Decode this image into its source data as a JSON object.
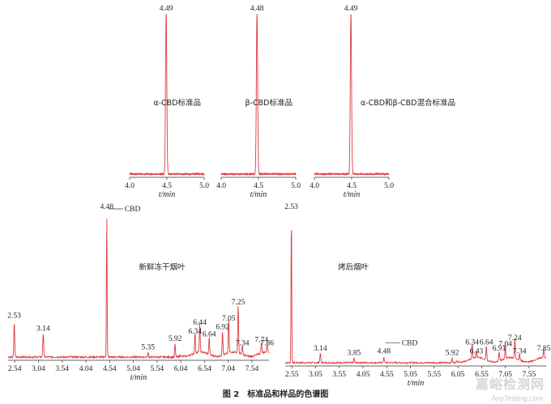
{
  "caption": "图 2　标准品和样品的色谱图",
  "watermark": {
    "text": "嘉峪检测网",
    "subtext": "AnyTesting.com"
  },
  "colors": {
    "trace": "#e0393f",
    "axis": "#333333"
  },
  "chart_data": [
    {
      "type": "line",
      "label": "α-CBD标准品",
      "xlabel": "t/min",
      "xlim": [
        4.0,
        5.0
      ],
      "xticks": [
        "4.0",
        "4.5",
        "5.0"
      ],
      "baseline_noise": 0.004,
      "peaks": [
        {
          "x": 4.49,
          "label": "4.49",
          "height": 1.0,
          "width": 0.012
        }
      ]
    },
    {
      "type": "line",
      "label": "β-CBD标准品",
      "xlabel": "t/min",
      "xlim": [
        4.0,
        5.0
      ],
      "xticks": [
        "4.0",
        "4.5",
        "5.0"
      ],
      "baseline_noise": 0.004,
      "peaks": [
        {
          "x": 4.48,
          "label": "4.48",
          "height": 1.0,
          "width": 0.012
        }
      ]
    },
    {
      "type": "line",
      "label": "α-CBD和β-CBD混合标准品",
      "xlabel": "t/min",
      "xlim": [
        4.0,
        5.0
      ],
      "xticks": [
        "4.0",
        "4.5",
        "5.0"
      ],
      "baseline_noise": 0.004,
      "peaks": [
        {
          "x": 4.49,
          "label": "4.49",
          "height": 1.0,
          "width": 0.012
        }
      ]
    },
    {
      "type": "line",
      "label": "新鲜冻干烟叶",
      "xlabel": "t/min",
      "xlim": [
        2.4,
        7.9
      ],
      "xticks": [
        "2.54",
        "3.04",
        "3.54",
        "4.04",
        "4.54",
        "5.04",
        "5.54",
        "6.04",
        "6.54",
        "7.04",
        "7.54"
      ],
      "baseline_noise": 0.006,
      "annotation": {
        "text": "CBD",
        "x": 4.48
      },
      "peaks": [
        {
          "x": 2.53,
          "label": "2.53",
          "height": 0.25,
          "width": 0.012
        },
        {
          "x": 3.14,
          "label": "3.14",
          "height": 0.16,
          "width": 0.014
        },
        {
          "x": 4.48,
          "label": "4.48",
          "height": 1.0,
          "width": 0.01
        },
        {
          "x": 5.35,
          "label": "5.35",
          "height": 0.03,
          "width": 0.012
        },
        {
          "x": 5.92,
          "label": "5.92",
          "height": 0.09,
          "width": 0.012
        },
        {
          "x": 6.34,
          "label": "6.34",
          "height": 0.14,
          "width": 0.012
        },
        {
          "x": 6.44,
          "label": "6.44",
          "height": 0.2,
          "width": 0.012
        },
        {
          "x": 6.64,
          "label": "6.64",
          "height": 0.12,
          "width": 0.012
        },
        {
          "x": 6.92,
          "label": "6.92",
          "height": 0.17,
          "width": 0.012
        },
        {
          "x": 7.05,
          "label": "7.05",
          "height": 0.23,
          "width": 0.012
        },
        {
          "x": 7.25,
          "label": "7.25",
          "height": 0.34,
          "width": 0.012
        },
        {
          "x": 7.34,
          "label": "7.34",
          "height": 0.06,
          "width": 0.012
        },
        {
          "x": 7.74,
          "label": "7.74",
          "height": 0.08,
          "width": 0.012
        },
        {
          "x": 7.86,
          "label": "7.86",
          "height": 0.06,
          "width": 0.012
        }
      ]
    },
    {
      "type": "line",
      "label": "烤后烟叶",
      "xlabel": "t/min",
      "xlim": [
        2.4,
        7.9
      ],
      "xticks": [
        "2.55",
        "3.05",
        "3.55",
        "4.05",
        "4.55",
        "5.05",
        "5.55",
        "6.05",
        "6.55",
        "7.05",
        "7.55"
      ],
      "baseline_noise": 0.005,
      "annotation": {
        "text": "CBD",
        "x": 4.48
      },
      "peaks": [
        {
          "x": 2.53,
          "label": "2.53",
          "height": 1.0,
          "width": 0.01
        },
        {
          "x": 3.14,
          "label": "3.14",
          "height": 0.06,
          "width": 0.014
        },
        {
          "x": 3.85,
          "label": "3.85",
          "height": 0.03,
          "width": 0.012
        },
        {
          "x": 4.48,
          "label": "4.48",
          "height": 0.04,
          "width": 0.012
        },
        {
          "x": 5.92,
          "label": "5.92",
          "height": 0.03,
          "width": 0.012
        },
        {
          "x": 6.34,
          "label": "6.34",
          "height": 0.1,
          "width": 0.012
        },
        {
          "x": 6.43,
          "label": "6.43",
          "height": 0.04,
          "width": 0.012
        },
        {
          "x": 6.64,
          "label": "6.64",
          "height": 0.1,
          "width": 0.012
        },
        {
          "x": 6.91,
          "label": "6.91",
          "height": 0.06,
          "width": 0.012
        },
        {
          "x": 7.04,
          "label": "7.04",
          "height": 0.09,
          "width": 0.012
        },
        {
          "x": 7.24,
          "label": "7.24",
          "height": 0.13,
          "width": 0.012
        },
        {
          "x": 7.34,
          "label": "7.34",
          "height": 0.04,
          "width": 0.012
        },
        {
          "x": 7.85,
          "label": "7.85",
          "height": 0.06,
          "width": 0.012
        }
      ]
    }
  ]
}
